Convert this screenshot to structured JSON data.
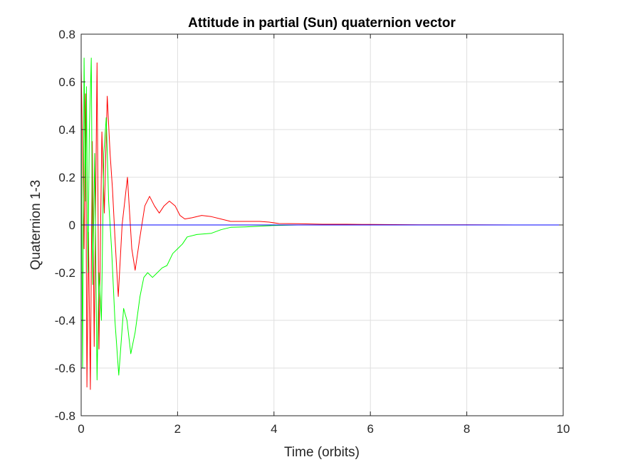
{
  "chart_data": {
    "type": "line",
    "title": "Attitude in partial (Sun) quaternion vector",
    "xlabel": "Time (orbits)",
    "ylabel": "Quaternion 1-3",
    "xlim": [
      0,
      10
    ],
    "ylim": [
      -0.8,
      0.8
    ],
    "xticks": [
      0,
      2,
      4,
      6,
      8,
      10
    ],
    "yticks": [
      -0.8,
      -0.6,
      -0.4,
      -0.2,
      0,
      0.2,
      0.4,
      0.6,
      0.8
    ],
    "grid": true,
    "series": [
      {
        "color": "#ff0000",
        "points": [
          [
            0,
            0.66
          ],
          [
            0.03,
            0.3
          ],
          [
            0.06,
            -0.1
          ],
          [
            0.09,
            0.55
          ],
          [
            0.12,
            -0.68
          ],
          [
            0.15,
            -0.03
          ],
          [
            0.19,
            -0.69
          ],
          [
            0.23,
            0.35
          ],
          [
            0.27,
            -0.51
          ],
          [
            0.33,
            0.68
          ],
          [
            0.37,
            -0.52
          ],
          [
            0.43,
            0.39
          ],
          [
            0.48,
            0.05
          ],
          [
            0.54,
            0.54
          ],
          [
            0.6,
            0.3
          ],
          [
            0.65,
            0.15
          ],
          [
            0.7,
            -0.05
          ],
          [
            0.77,
            -0.3
          ],
          [
            0.85,
            0.0
          ],
          [
            0.96,
            0.2
          ],
          [
            1.05,
            -0.1
          ],
          [
            1.12,
            -0.19
          ],
          [
            1.22,
            -0.05
          ],
          [
            1.32,
            0.08
          ],
          [
            1.42,
            0.12
          ],
          [
            1.52,
            0.08
          ],
          [
            1.62,
            0.05
          ],
          [
            1.72,
            0.08
          ],
          [
            1.83,
            0.1
          ],
          [
            1.95,
            0.08
          ],
          [
            2.05,
            0.04
          ],
          [
            2.15,
            0.025
          ],
          [
            2.3,
            0.03
          ],
          [
            2.5,
            0.04
          ],
          [
            2.7,
            0.035
          ],
          [
            2.9,
            0.025
          ],
          [
            3.1,
            0.015
          ],
          [
            3.4,
            0.015
          ],
          [
            3.7,
            0.015
          ],
          [
            3.9,
            0.012
          ],
          [
            4.1,
            0.006
          ],
          [
            4.5,
            0.005
          ],
          [
            5.0,
            0.003
          ],
          [
            5.5,
            0.003
          ],
          [
            6.0,
            0.002
          ],
          [
            7.0,
            0.001
          ],
          [
            8.0,
            0.0005
          ],
          [
            9.0,
            0.0
          ],
          [
            10.0,
            0.0
          ]
        ]
      },
      {
        "color": "#00ff00",
        "points": [
          [
            0,
            0.5
          ],
          [
            0.03,
            -0.6
          ],
          [
            0.06,
            0.7
          ],
          [
            0.09,
            0.1
          ],
          [
            0.11,
            0.58
          ],
          [
            0.14,
            -0.2
          ],
          [
            0.17,
            0.4
          ],
          [
            0.21,
            0.7
          ],
          [
            0.24,
            -0.25
          ],
          [
            0.28,
            0.3
          ],
          [
            0.33,
            -0.65
          ],
          [
            0.37,
            -0.2
          ],
          [
            0.42,
            -0.4
          ],
          [
            0.47,
            0.3
          ],
          [
            0.52,
            0.45
          ],
          [
            0.57,
            0.1
          ],
          [
            0.63,
            -0.1
          ],
          [
            0.7,
            -0.4
          ],
          [
            0.78,
            -0.63
          ],
          [
            0.88,
            -0.35
          ],
          [
            0.95,
            -0.4
          ],
          [
            1.03,
            -0.54
          ],
          [
            1.12,
            -0.45
          ],
          [
            1.22,
            -0.3
          ],
          [
            1.3,
            -0.22
          ],
          [
            1.38,
            -0.2
          ],
          [
            1.48,
            -0.22
          ],
          [
            1.58,
            -0.2
          ],
          [
            1.68,
            -0.18
          ],
          [
            1.78,
            -0.17
          ],
          [
            1.9,
            -0.12
          ],
          [
            2.0,
            -0.1
          ],
          [
            2.1,
            -0.08
          ],
          [
            2.2,
            -0.05
          ],
          [
            2.4,
            -0.04
          ],
          [
            2.7,
            -0.035
          ],
          [
            2.9,
            -0.02
          ],
          [
            3.1,
            -0.01
          ],
          [
            3.4,
            -0.008
          ],
          [
            3.7,
            -0.005
          ],
          [
            4.0,
            -0.002
          ],
          [
            4.5,
            0.0
          ],
          [
            5.0,
            0.0
          ],
          [
            6.0,
            0.0
          ],
          [
            7.0,
            0.0
          ],
          [
            8.0,
            0.0
          ],
          [
            9.0,
            0.0
          ],
          [
            10.0,
            0.0
          ]
        ]
      },
      {
        "color": "#0000ff",
        "points": [
          [
            0,
            0.0
          ],
          [
            10,
            0.0
          ]
        ]
      }
    ]
  }
}
